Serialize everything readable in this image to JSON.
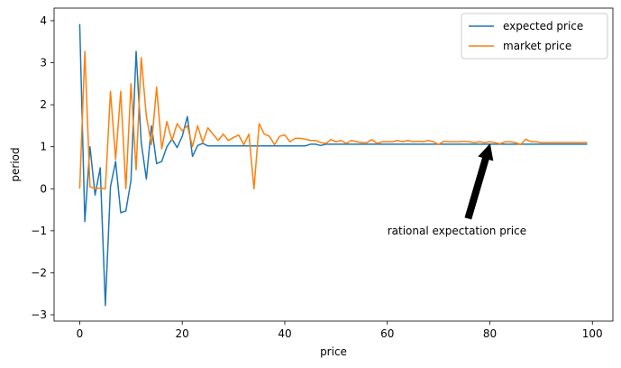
{
  "chart_data": {
    "type": "line",
    "xlabel": "price",
    "ylabel": "period",
    "xlim": [
      -5,
      104
    ],
    "ylim": [
      -3.15,
      4.3
    ],
    "xticks": [
      0,
      20,
      40,
      60,
      80,
      100
    ],
    "yticks": [
      -3,
      -2,
      -1,
      0,
      1,
      2,
      3,
      4
    ],
    "xtick_labels": [
      "0",
      "20",
      "40",
      "60",
      "80",
      "100"
    ],
    "ytick_labels": [
      "−3",
      "−2",
      "−1",
      "0",
      "1",
      "2",
      "3",
      "4"
    ],
    "grid": false,
    "legend_position": "top-right",
    "series": [
      {
        "name": "expected price",
        "color": "#1f77b4",
        "x": [
          0,
          1,
          2,
          3,
          4,
          5,
          6,
          7,
          8,
          9,
          10,
          11,
          12,
          13,
          14,
          15,
          16,
          17,
          18,
          19,
          20,
          21,
          22,
          23,
          24,
          25,
          26,
          27,
          28,
          29,
          30,
          31,
          32,
          33,
          34,
          35,
          36,
          37,
          38,
          39,
          40,
          41,
          42,
          43,
          44,
          45,
          46,
          47,
          48,
          49,
          50,
          51,
          52,
          53,
          54,
          55,
          56,
          57,
          58,
          59,
          60,
          61,
          62,
          63,
          64,
          65,
          66,
          67,
          68,
          69,
          70,
          71,
          72,
          73,
          74,
          75,
          76,
          77,
          78,
          79,
          80,
          81,
          82,
          83,
          84,
          85,
          86,
          87,
          88,
          89,
          90,
          91,
          92,
          93,
          94,
          95,
          96,
          97,
          98,
          99
        ],
        "values": [
          3.92,
          -0.78,
          1.0,
          -0.15,
          0.5,
          -2.78,
          0.05,
          0.65,
          -0.57,
          -0.53,
          0.2,
          3.27,
          1.1,
          0.23,
          1.5,
          0.6,
          0.65,
          1.0,
          1.18,
          0.98,
          1.25,
          1.72,
          0.77,
          1.03,
          1.08,
          1.02,
          1.02,
          1.02,
          1.02,
          1.02,
          1.02,
          1.02,
          1.02,
          1.02,
          1.02,
          1.02,
          1.02,
          1.02,
          1.02,
          1.02,
          1.02,
          1.02,
          1.02,
          1.02,
          1.02,
          1.06,
          1.06,
          1.03,
          1.06,
          1.06,
          1.06,
          1.06,
          1.06,
          1.06,
          1.06,
          1.06,
          1.06,
          1.06,
          1.06,
          1.06,
          1.06,
          1.06,
          1.06,
          1.06,
          1.06,
          1.06,
          1.06,
          1.06,
          1.06,
          1.06,
          1.06,
          1.06,
          1.06,
          1.06,
          1.06,
          1.06,
          1.06,
          1.06,
          1.06,
          1.06,
          1.06,
          1.06,
          1.06,
          1.06,
          1.06,
          1.06,
          1.06,
          1.06,
          1.06,
          1.06,
          1.06,
          1.06,
          1.06,
          1.06,
          1.06,
          1.06,
          1.06,
          1.06,
          1.06,
          1.06
        ]
      },
      {
        "name": "market price",
        "color": "#ff7f0e",
        "x": [
          0,
          1,
          2,
          3,
          4,
          5,
          6,
          7,
          8,
          9,
          10,
          11,
          12,
          13,
          14,
          15,
          16,
          17,
          18,
          19,
          20,
          21,
          22,
          23,
          24,
          25,
          26,
          27,
          28,
          29,
          30,
          31,
          32,
          33,
          34,
          35,
          36,
          37,
          38,
          39,
          40,
          41,
          42,
          43,
          44,
          45,
          46,
          47,
          48,
          49,
          50,
          51,
          52,
          53,
          54,
          55,
          56,
          57,
          58,
          59,
          60,
          61,
          62,
          63,
          64,
          65,
          66,
          67,
          68,
          69,
          70,
          71,
          72,
          73,
          74,
          75,
          76,
          77,
          78,
          79,
          80,
          81,
          82,
          83,
          84,
          85,
          86,
          87,
          88,
          89,
          90,
          91,
          92,
          93,
          94,
          95,
          96,
          97,
          98,
          99
        ],
        "values": [
          0.0,
          3.27,
          0.05,
          0.0,
          0.02,
          0.0,
          2.32,
          0.7,
          2.32,
          0.0,
          2.5,
          0.45,
          3.12,
          1.72,
          1.05,
          2.42,
          0.95,
          1.6,
          1.15,
          1.55,
          1.38,
          1.5,
          1.0,
          1.5,
          1.1,
          1.45,
          1.3,
          1.15,
          1.3,
          1.15,
          1.22,
          1.28,
          1.05,
          1.3,
          0.0,
          1.55,
          1.3,
          1.25,
          1.05,
          1.25,
          1.28,
          1.12,
          1.2,
          1.2,
          1.18,
          1.15,
          1.15,
          1.1,
          1.08,
          1.17,
          1.12,
          1.15,
          1.08,
          1.15,
          1.12,
          1.1,
          1.1,
          1.17,
          1.08,
          1.12,
          1.12,
          1.12,
          1.15,
          1.12,
          1.15,
          1.12,
          1.13,
          1.12,
          1.15,
          1.12,
          1.05,
          1.13,
          1.12,
          1.12,
          1.12,
          1.13,
          1.12,
          1.1,
          1.12,
          1.1,
          1.12,
          1.1,
          1.07,
          1.12,
          1.12,
          1.1,
          1.05,
          1.18,
          1.12,
          1.12,
          1.1,
          1.1,
          1.1,
          1.1,
          1.1,
          1.1,
          1.1,
          1.1,
          1.1,
          1.1
        ]
      }
    ],
    "annotations": [
      {
        "text": "rational expectation price",
        "xy": [
          80,
          1.12
        ],
        "xytext": [
          60,
          -1.0
        ]
      }
    ]
  }
}
